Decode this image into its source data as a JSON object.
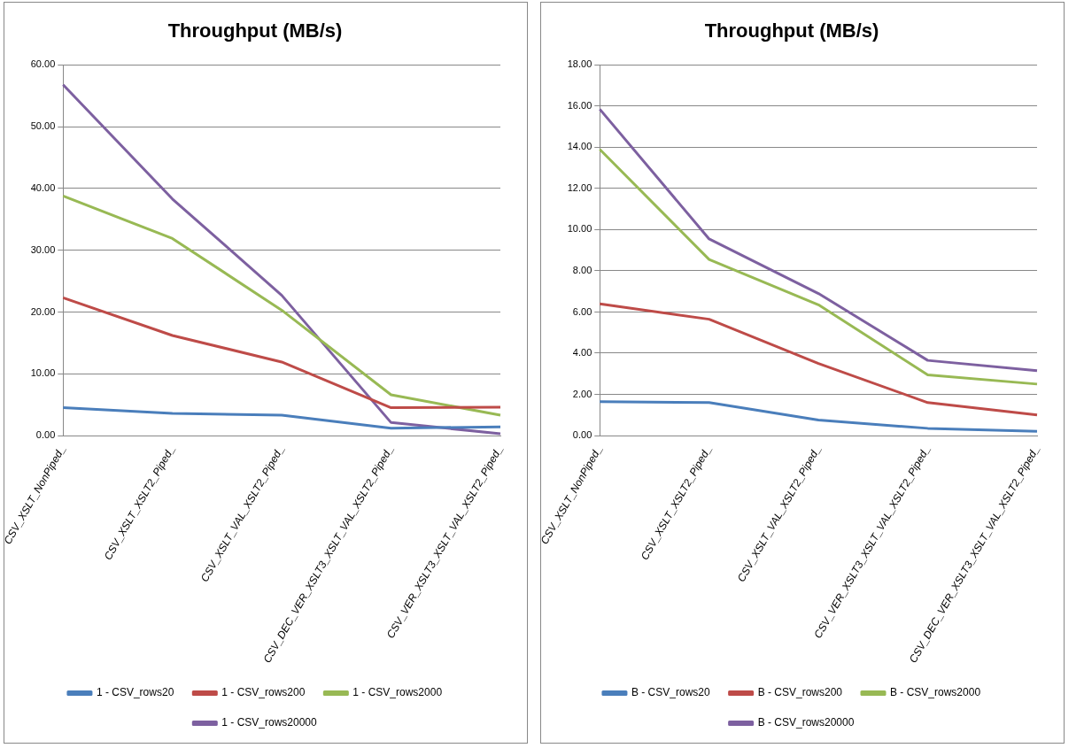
{
  "chart_data": [
    {
      "type": "line",
      "title": "Throughput (MB/s)",
      "categories": [
        "CSV_XSLT_NonPiped_",
        "CSV_XSLT_XSLT2_Piped_",
        "CSV_XSLT_VAL_XSLT2_Piped_",
        "CSV_DEC_VER_XSLT3_XSLT_VAL_XSLT2_Piped_",
        "CSV_VER_XSLT3_XSLT_VAL_XSLT2_Piped_"
      ],
      "series": [
        {
          "name": "1 - CSV_rows20",
          "color": "#4a7ebb",
          "values": [
            4.5,
            3.6,
            3.3,
            1.2,
            1.4
          ]
        },
        {
          "name": "1 - CSV_rows200",
          "color": "#be4b48",
          "values": [
            22.3,
            16.2,
            11.9,
            4.5,
            4.6
          ]
        },
        {
          "name": "1 - CSV_rows2000",
          "color": "#98b954",
          "values": [
            38.8,
            31.9,
            20.3,
            6.6,
            3.3
          ]
        },
        {
          "name": "1 - CSV_rows20000",
          "color": "#7d60a0",
          "values": [
            56.8,
            38.3,
            22.7,
            2.1,
            0.3
          ]
        }
      ],
      "ylim": [
        0,
        60
      ],
      "yticks": [
        {
          "value": 0,
          "label": "0.00"
        },
        {
          "value": 10,
          "label": "10.00"
        },
        {
          "value": 20,
          "label": "20.00"
        },
        {
          "value": 30,
          "label": "30.00"
        },
        {
          "value": 40,
          "label": "40.00"
        },
        {
          "value": 50,
          "label": "50.00"
        },
        {
          "value": 60,
          "label": "60.00"
        }
      ],
      "grid": "y",
      "legend": "bottom",
      "marker": "none",
      "line_style": "solid"
    },
    {
      "type": "line",
      "title": "Throughput (MB/s)",
      "categories": [
        "CSV_XSLT_NonPiped_",
        "CSV_XSLT_XSLT2_Piped_",
        "CSV_XSLT_VAL_XSLT2_Piped_",
        "CSV_VER_XSLT3_XSLT_VAL_XSLT2_Piped_",
        "CSV_DEC_VER_XSLT3_XSLT_VAL_XSLT2_Piped_"
      ],
      "series": [
        {
          "name": "B - CSV_rows20",
          "color": "#4a7ebb",
          "values": [
            1.65,
            1.6,
            0.75,
            0.35,
            0.2
          ]
        },
        {
          "name": "B - CSV_rows200",
          "color": "#be4b48",
          "values": [
            6.4,
            5.65,
            3.5,
            1.6,
            1.0
          ]
        },
        {
          "name": "B - CSV_rows2000",
          "color": "#98b954",
          "values": [
            13.9,
            8.55,
            6.35,
            2.95,
            2.5
          ]
        },
        {
          "name": "B - CSV_rows20000",
          "color": "#7d60a0",
          "values": [
            15.85,
            9.55,
            6.9,
            3.65,
            3.15
          ]
        }
      ],
      "ylim": [
        0,
        18
      ],
      "yticks": [
        {
          "value": 0,
          "label": "0.00"
        },
        {
          "value": 2,
          "label": "2.00"
        },
        {
          "value": 4,
          "label": "4.00"
        },
        {
          "value": 6,
          "label": "6.00"
        },
        {
          "value": 8,
          "label": "8.00"
        },
        {
          "value": 10,
          "label": "10.00"
        },
        {
          "value": 12,
          "label": "12.00"
        },
        {
          "value": 14,
          "label": "14.00"
        },
        {
          "value": 16,
          "label": "16.00"
        },
        {
          "value": 18,
          "label": "18.00"
        }
      ],
      "grid": "y",
      "legend": "bottom",
      "marker": "none",
      "line_style": "solid"
    }
  ]
}
